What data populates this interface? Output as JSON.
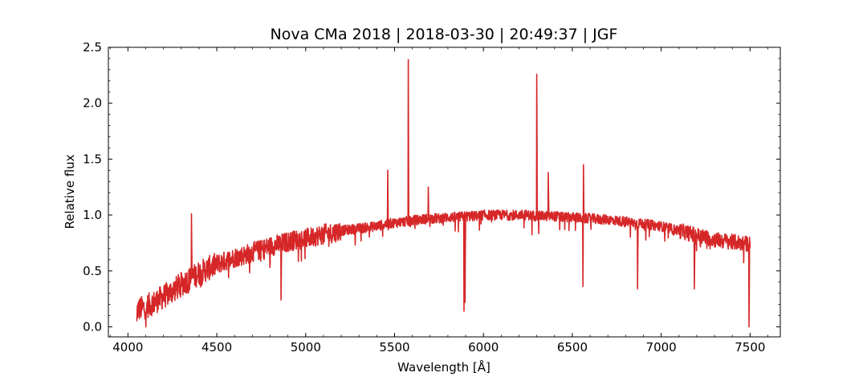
{
  "chart_data": {
    "type": "line",
    "title": "Nova CMa 2018 | 2018-03-30 | 20:49:37 | JGF",
    "xlabel": "Wavelength [Å]",
    "ylabel": "Relative flux",
    "xlim": [
      3890,
      7670
    ],
    "ylim": [
      -0.09,
      2.5
    ],
    "xticks": [
      4000,
      4500,
      5000,
      5500,
      6000,
      6500,
      7000,
      7500
    ],
    "xtick_labels": [
      "4000",
      "4500",
      "5000",
      "5500",
      "6000",
      "6500",
      "7000",
      "7500"
    ],
    "yticks": [
      0.0,
      0.5,
      1.0,
      1.5,
      2.0,
      2.5
    ],
    "ytick_labels": [
      "0.0",
      "0.5",
      "1.0",
      "1.5",
      "2.0",
      "2.5"
    ],
    "grid": false,
    "line_color": "#d62728",
    "series": [
      {
        "x": [
          4050,
          4100,
          4150,
          4200,
          4250,
          4300,
          4350,
          4400,
          4450,
          4500,
          4550,
          4600,
          4650,
          4700,
          4750,
          4800,
          4850,
          4900,
          4950,
          5000,
          5050,
          5100,
          5150,
          5200,
          5250,
          5300,
          5350,
          5400,
          5450,
          5500,
          5550,
          5600,
          5650,
          5700,
          5750,
          5800,
          5850,
          5900,
          5950,
          6000,
          6050,
          6100,
          6150,
          6200,
          6250,
          6300,
          6350,
          6400,
          6450,
          6500,
          6550,
          6600,
          6650,
          6700,
          6750,
          6800,
          6850,
          6900,
          6950,
          7000,
          7050,
          7100,
          7150,
          7200,
          7250,
          7300,
          7350,
          7400,
          7450,
          7500
        ],
        "values": [
          0.15,
          0.18,
          0.22,
          0.27,
          0.32,
          0.38,
          0.43,
          0.48,
          0.52,
          0.56,
          0.59,
          0.62,
          0.64,
          0.67,
          0.69,
          0.72,
          0.74,
          0.76,
          0.78,
          0.79,
          0.81,
          0.83,
          0.84,
          0.86,
          0.87,
          0.88,
          0.89,
          0.9,
          0.92,
          0.93,
          0.94,
          0.95,
          0.96,
          0.97,
          0.97,
          0.98,
          0.98,
          0.99,
          0.99,
          1.0,
          1.0,
          1.0,
          1.0,
          1.0,
          1.0,
          0.99,
          0.99,
          0.99,
          0.98,
          0.98,
          0.97,
          0.97,
          0.96,
          0.96,
          0.95,
          0.94,
          0.93,
          0.92,
          0.91,
          0.9,
          0.88,
          0.86,
          0.84,
          0.82,
          0.8,
          0.78,
          0.77,
          0.76,
          0.75,
          0.74
        ]
      }
    ],
    "features": [
      {
        "x": 4050,
        "y": 0.05
      },
      {
        "x": 4101,
        "y": 0.0
      },
      {
        "x": 4340,
        "y": 0.3
      },
      {
        "x": 4358,
        "y": 1.01
      },
      {
        "x": 4861,
        "y": 0.24
      },
      {
        "x": 5461,
        "y": 1.4
      },
      {
        "x": 5577,
        "y": 2.39
      },
      {
        "x": 5690,
        "y": 1.25
      },
      {
        "x": 5890,
        "y": 0.14
      },
      {
        "x": 5896,
        "y": 0.22
      },
      {
        "x": 6300,
        "y": 2.26
      },
      {
        "x": 6364,
        "y": 1.38
      },
      {
        "x": 6563,
        "y": 1.45
      },
      {
        "x": 6560,
        "y": 0.36
      },
      {
        "x": 6867,
        "y": 0.34
      },
      {
        "x": 7186,
        "y": 0.34
      },
      {
        "x": 7494,
        "y": 0.0
      }
    ]
  }
}
